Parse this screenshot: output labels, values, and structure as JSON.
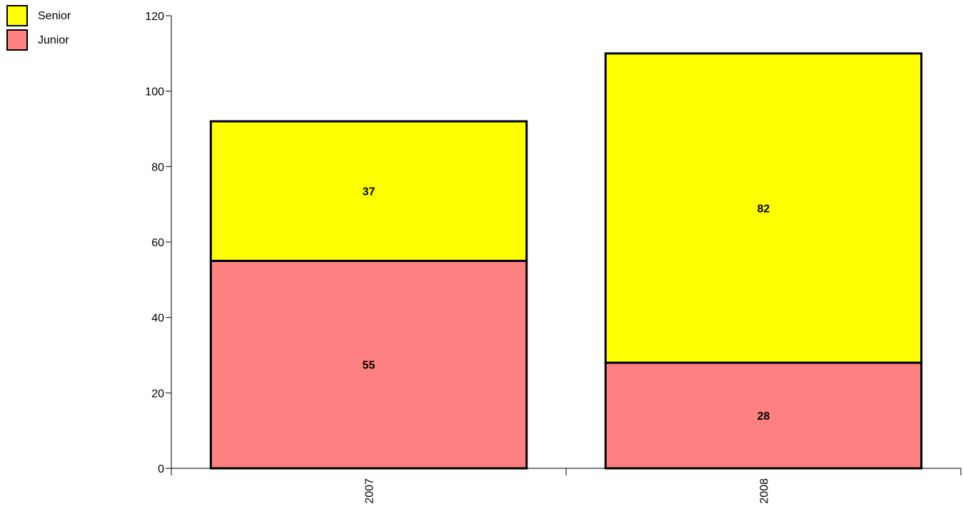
{
  "chart_data": {
    "type": "bar",
    "stacked": true,
    "title": "",
    "xlabel": "",
    "ylabel": "",
    "categories": [
      "2007",
      "2008"
    ],
    "series": [
      {
        "name": "Junior",
        "values": [
          55,
          28
        ],
        "color": "#ff8080"
      },
      {
        "name": "Senior",
        "values": [
          37,
          82
        ],
        "color": "#ffff00"
      }
    ],
    "legend_order": [
      "Senior",
      "Junior"
    ],
    "legend_position": "top-left",
    "ylim": [
      0,
      120
    ],
    "yticks": [
      0,
      20,
      40,
      60,
      80,
      100,
      120
    ],
    "grid": false,
    "data_labels": true
  }
}
